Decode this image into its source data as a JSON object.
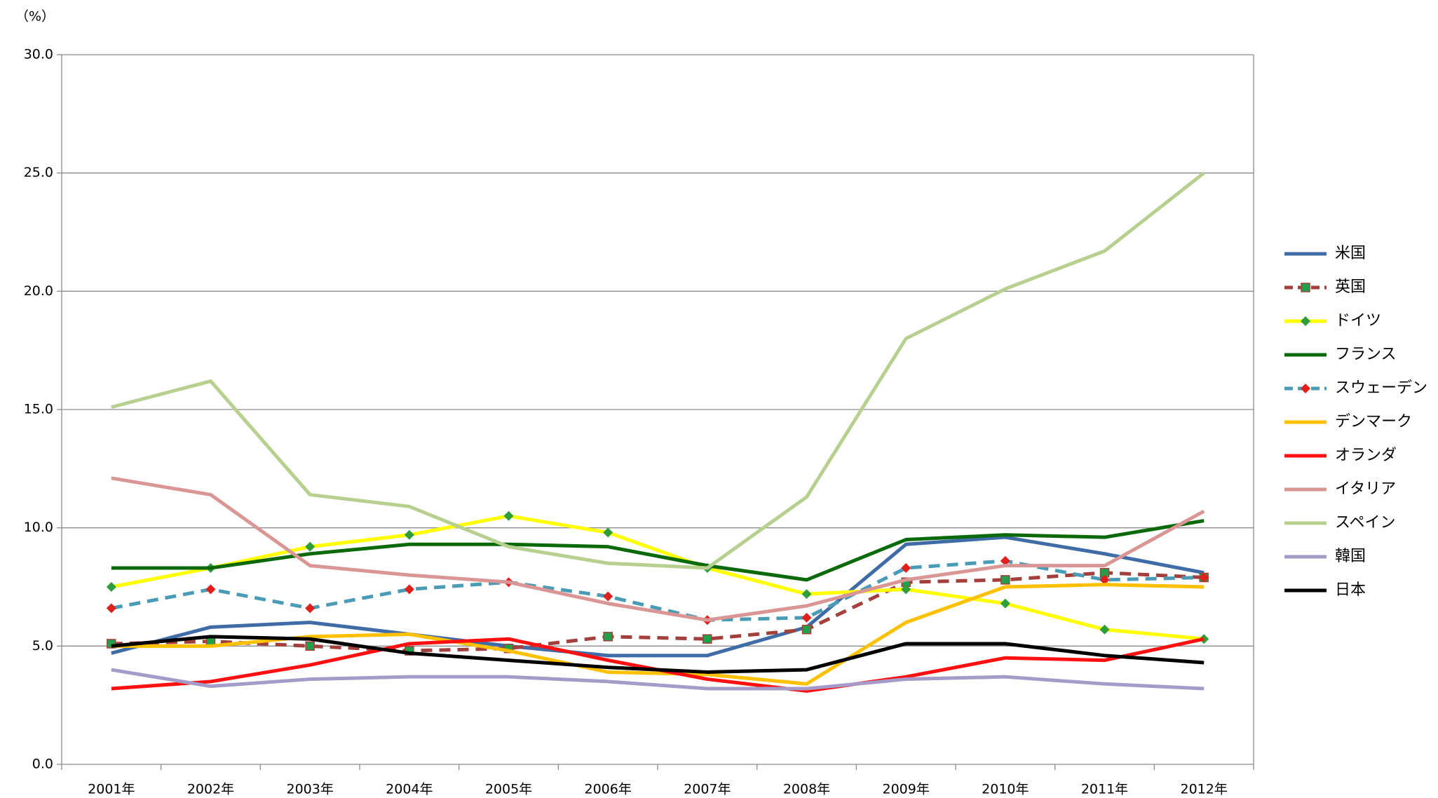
{
  "chart_data": {
    "type": "line",
    "ylabel": "（%）",
    "categories": [
      "2001年",
      "2002年",
      "2003年",
      "2004年",
      "2005年",
      "2006年",
      "2007年",
      "2008年",
      "2009年",
      "2010年",
      "2011年",
      "2012年"
    ],
    "ylim": [
      0,
      30
    ],
    "yticks": [
      {
        "value": 0,
        "label": "0.0"
      },
      {
        "value": 5,
        "label": "5.0"
      },
      {
        "value": 10,
        "label": "10.0"
      },
      {
        "value": 15,
        "label": "15.0"
      },
      {
        "value": 20,
        "label": "20.0"
      },
      {
        "value": 25,
        "label": "25.0"
      },
      {
        "value": 30,
        "label": "30.0"
      }
    ],
    "grid": true,
    "legend": "right",
    "series": [
      {
        "name": "米国",
        "color": "#3f6ca6",
        "values": [
          4.7,
          5.8,
          6.0,
          5.5,
          5.0,
          4.6,
          4.6,
          5.8,
          9.3,
          9.6,
          8.9,
          8.1
        ]
      },
      {
        "name": "英国",
        "color": "#a3403c",
        "dash": true,
        "marker": "square",
        "marker_color": "#1fa04a",
        "values": [
          5.1,
          5.2,
          5.0,
          4.8,
          4.9,
          5.4,
          5.3,
          5.7,
          7.7,
          7.8,
          8.1,
          7.9
        ]
      },
      {
        "name": "ドイツ",
        "color": "#ffff00",
        "marker": "diamond",
        "marker_color": "#2e9e3a",
        "values": [
          7.5,
          8.3,
          9.2,
          9.7,
          10.5,
          9.8,
          8.3,
          7.2,
          7.4,
          6.8,
          5.7,
          5.3
        ]
      },
      {
        "name": "フランス",
        "color": "#0a6a0a",
        "values": [
          8.3,
          8.3,
          8.9,
          9.3,
          9.3,
          9.2,
          8.4,
          7.8,
          9.5,
          9.7,
          9.6,
          10.3
        ]
      },
      {
        "name": "スウェーデン",
        "color": "#4a9bb5",
        "dash": true,
        "marker": "diamond",
        "marker_color": "#e0201c",
        "values": [
          6.6,
          7.4,
          6.6,
          7.4,
          7.7,
          7.1,
          6.1,
          6.2,
          8.3,
          8.6,
          7.8,
          7.9
        ]
      },
      {
        "name": "デンマーク",
        "color": "#ffc000",
        "values": [
          5.0,
          5.0,
          5.4,
          5.5,
          4.8,
          3.9,
          3.8,
          3.4,
          6.0,
          7.5,
          7.6,
          7.5
        ]
      },
      {
        "name": "オランダ",
        "color": "#ff1010",
        "values": [
          3.2,
          3.5,
          4.2,
          5.1,
          5.3,
          4.4,
          3.6,
          3.1,
          3.7,
          4.5,
          4.4,
          5.3
        ]
      },
      {
        "name": "イタリア",
        "color": "#d99694",
        "values": [
          12.1,
          11.4,
          8.4,
          8.0,
          7.7,
          6.8,
          6.1,
          6.7,
          7.8,
          8.4,
          8.4,
          10.7
        ]
      },
      {
        "name": "スペイン",
        "color": "#b7d08f",
        "values": [
          15.1,
          16.2,
          11.4,
          10.9,
          9.2,
          8.5,
          8.3,
          11.3,
          18.0,
          20.1,
          21.7,
          25.0
        ]
      },
      {
        "name": "韓国",
        "color": "#a59bc9",
        "values": [
          4.0,
          3.3,
          3.6,
          3.7,
          3.7,
          3.5,
          3.2,
          3.2,
          3.6,
          3.7,
          3.4,
          3.2
        ]
      },
      {
        "name": "日本",
        "color": "#000000",
        "values": [
          5.0,
          5.4,
          5.3,
          4.7,
          4.4,
          4.1,
          3.9,
          4.0,
          5.1,
          5.1,
          4.6,
          4.3
        ]
      }
    ]
  }
}
